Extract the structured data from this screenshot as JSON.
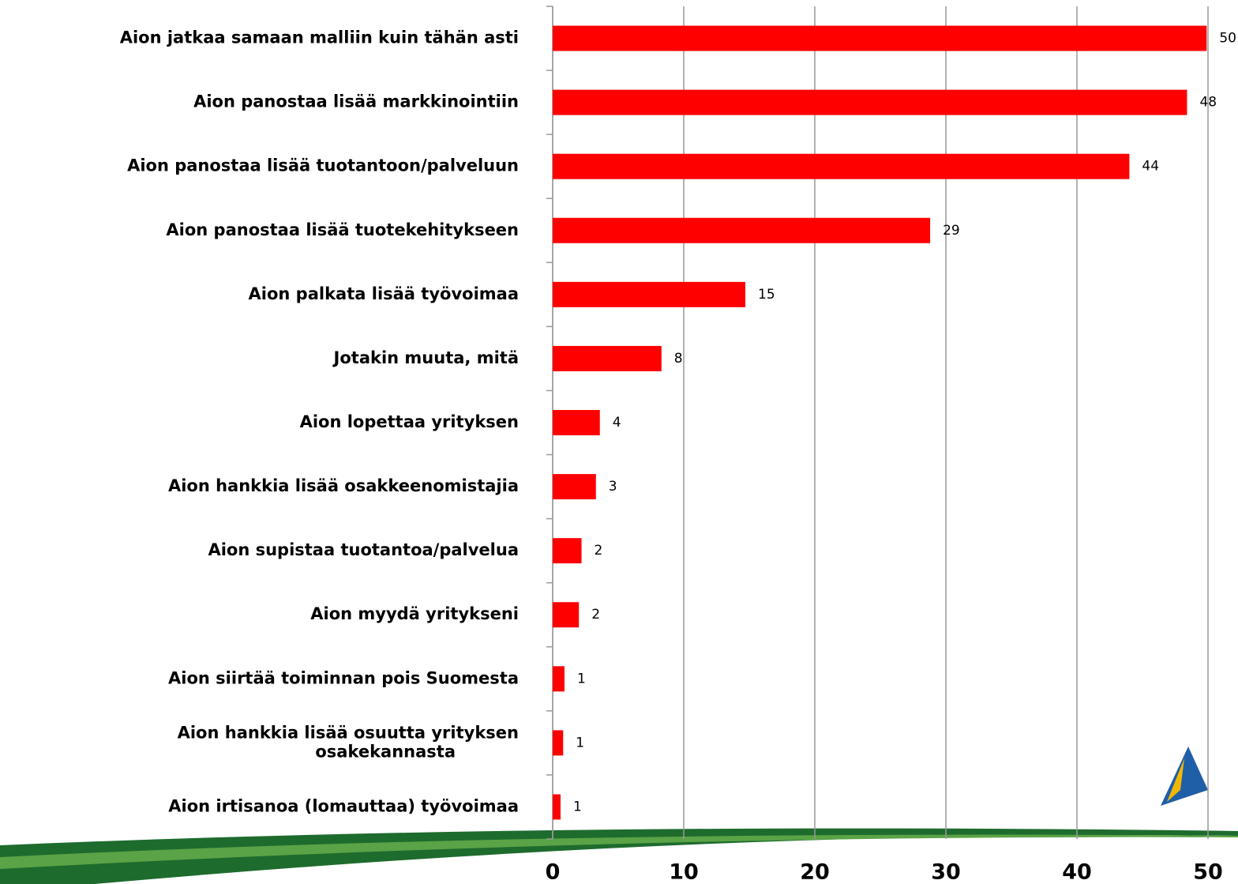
{
  "chart_data": {
    "type": "bar",
    "orientation": "horizontal",
    "categories": [
      "Aion jatkaa samaan malliin kuin tähän asti",
      "Aion panostaa lisää markkinointiin",
      "Aion panostaa lisää tuotantoon/palveluun",
      "Aion panostaa lisää tuotekehitykseen",
      "Aion palkata lisää työvoimaa",
      "Jotakin muuta, mitä",
      "Aion lopettaa yrityksen",
      "Aion hankkia lisää osakkeenomistajia",
      "Aion supistaa tuotantoa/palvelua",
      "Aion myydä yritykseni",
      "Aion siirtää toiminnan pois Suomesta",
      "Aion hankkia lisää osuutta yrityksen\nosakekannasta",
      "Aion irtisanoa (lomauttaa) työvoimaa"
    ],
    "values": [
      49.9,
      48.4,
      44,
      28.8,
      14.7,
      8.3,
      3.6,
      3.3,
      2.2,
      2,
      0.9,
      0.8,
      0.6
    ],
    "value_labels": [
      "50",
      "48",
      "44",
      "29",
      "15",
      "8",
      "4",
      "3",
      "2",
      "2",
      "1",
      "1",
      "1"
    ],
    "color": "#ff0000",
    "xlim": [
      0,
      50
    ],
    "xticks": [
      0,
      10,
      20,
      30,
      40,
      50
    ],
    "grid": true
  }
}
